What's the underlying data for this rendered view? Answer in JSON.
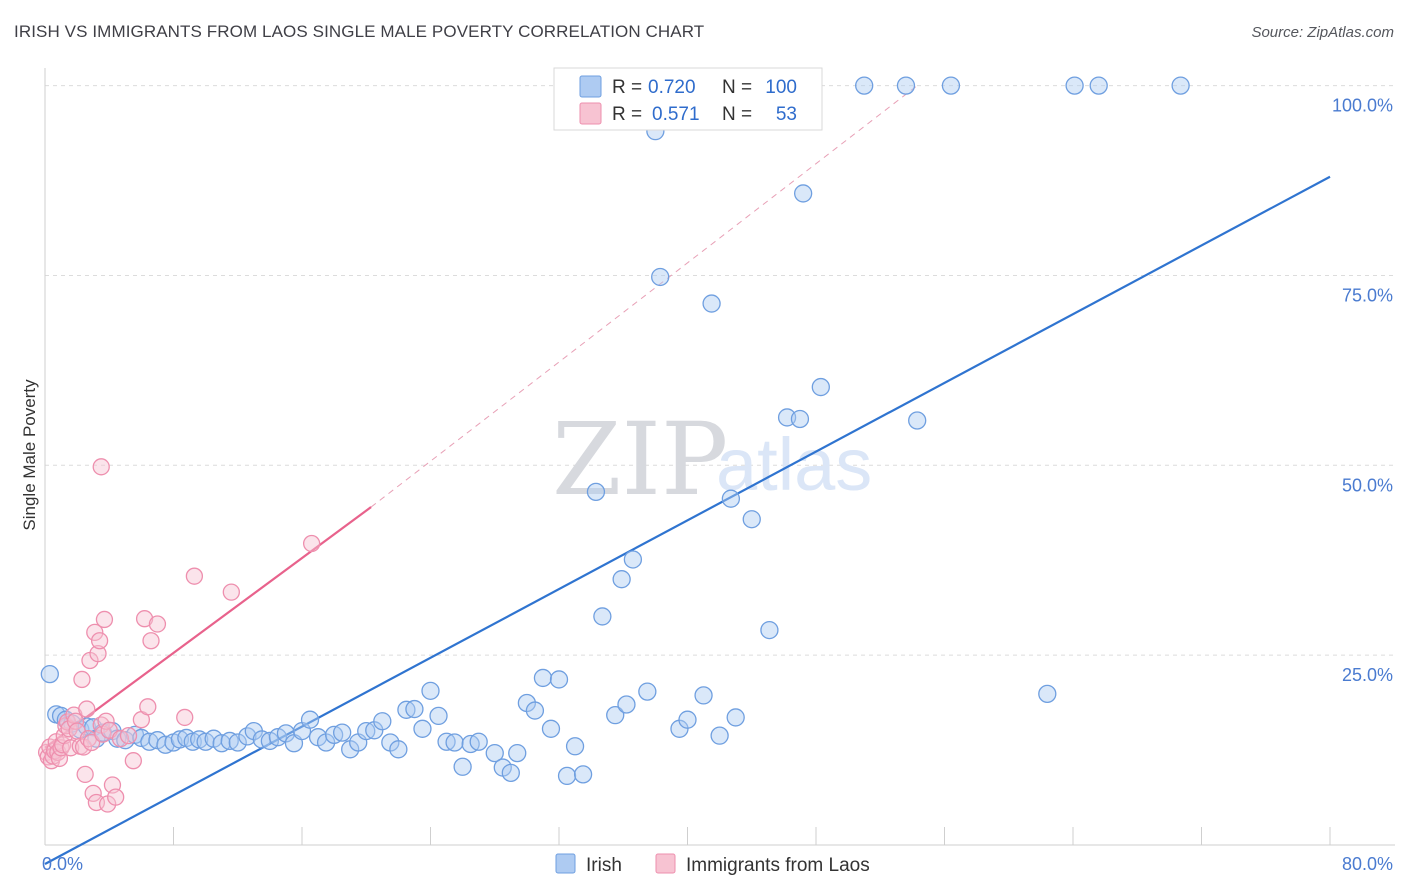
{
  "header": {
    "title": "IRISH VS IMMIGRANTS FROM LAOS SINGLE MALE POVERTY CORRELATION CHART",
    "source": "Source: ZipAtlas.com"
  },
  "watermark": {
    "zip": "ZIP",
    "atlas": "atlas"
  },
  "colors": {
    "irish_fill": "#aecbf2",
    "irish_stroke": "#6f9fe0",
    "irish_line": "#2f74d0",
    "laos_fill": "#f7c3d2",
    "laos_stroke": "#ee8fae",
    "laos_line": "#e8628c",
    "grid": "#dcdcdc",
    "tick_label": "#4a7bd0"
  },
  "legend": {
    "r_label": "R =",
    "n_label": "N =",
    "rows": [
      {
        "series": "Irish",
        "r": "0.720",
        "n": "100"
      },
      {
        "series": "Immigrants from Laos",
        "r": "0.571",
        "n": "53"
      }
    ]
  },
  "chart_data": {
    "type": "scatter",
    "title": "IRISH VS IMMIGRANTS FROM LAOS SINGLE MALE POVERTY CORRELATION CHART",
    "xlabel": "",
    "ylabel": "Single Male Poverty",
    "xlim": [
      0,
      80
    ],
    "ylim": [
      0,
      101
    ],
    "x_tick_labels": [
      "0.0%",
      "80.0%"
    ],
    "y_ticks": [
      25,
      50,
      75,
      100
    ],
    "y_tick_labels": [
      "25.0%",
      "50.0%",
      "75.0%",
      "100.0%"
    ],
    "grid": true,
    "legend_position": "top-center",
    "series": [
      {
        "name": "Irish",
        "trendline": {
          "x": [
            0,
            80
          ],
          "y": [
            -2.5,
            88
          ]
        },
        "points": [
          [
            0.3,
            22.5
          ],
          [
            0.7,
            17.2
          ],
          [
            1.0,
            17.0
          ],
          [
            1.3,
            16.5
          ],
          [
            1.7,
            16.0
          ],
          [
            2.2,
            15.2
          ],
          [
            2.6,
            15.6
          ],
          [
            3.0,
            15.5
          ],
          [
            3.2,
            14.0
          ],
          [
            3.6,
            14.8
          ],
          [
            4.2,
            15.0
          ],
          [
            4.5,
            14.0
          ],
          [
            5.0,
            13.8
          ],
          [
            5.6,
            14.5
          ],
          [
            6.0,
            14.1
          ],
          [
            6.5,
            13.6
          ],
          [
            7.0,
            13.8
          ],
          [
            7.5,
            13.2
          ],
          [
            8.0,
            13.5
          ],
          [
            8.4,
            13.9
          ],
          [
            8.8,
            14.1
          ],
          [
            9.2,
            13.6
          ],
          [
            9.6,
            13.9
          ],
          [
            10.0,
            13.6
          ],
          [
            10.5,
            14.0
          ],
          [
            11.0,
            13.4
          ],
          [
            11.5,
            13.7
          ],
          [
            12.0,
            13.5
          ],
          [
            12.6,
            14.3
          ],
          [
            13.0,
            15.0
          ],
          [
            13.5,
            13.9
          ],
          [
            14.0,
            13.7
          ],
          [
            14.5,
            14.2
          ],
          [
            15.0,
            14.7
          ],
          [
            15.5,
            13.4
          ],
          [
            16.0,
            15.0
          ],
          [
            16.5,
            16.5
          ],
          [
            17.0,
            14.2
          ],
          [
            17.5,
            13.5
          ],
          [
            18.0,
            14.5
          ],
          [
            18.5,
            14.8
          ],
          [
            19.0,
            12.6
          ],
          [
            19.5,
            13.5
          ],
          [
            20.0,
            15.0
          ],
          [
            20.5,
            15.1
          ],
          [
            21.0,
            16.3
          ],
          [
            21.5,
            13.5
          ],
          [
            22.0,
            12.6
          ],
          [
            22.5,
            17.8
          ],
          [
            23.0,
            17.9
          ],
          [
            23.5,
            15.3
          ],
          [
            24.0,
            20.3
          ],
          [
            24.5,
            17.0
          ],
          [
            25.0,
            13.6
          ],
          [
            25.5,
            13.5
          ],
          [
            26.0,
            10.3
          ],
          [
            26.5,
            13.3
          ],
          [
            27.0,
            13.6
          ],
          [
            28.0,
            12.1
          ],
          [
            28.5,
            10.2
          ],
          [
            29.0,
            9.5
          ],
          [
            29.4,
            12.1
          ],
          [
            30.0,
            18.7
          ],
          [
            30.5,
            17.7
          ],
          [
            31.0,
            22.0
          ],
          [
            31.5,
            15.3
          ],
          [
            32.0,
            21.8
          ],
          [
            32.5,
            9.1
          ],
          [
            33.0,
            13.0
          ],
          [
            33.5,
            9.3
          ],
          [
            34.3,
            46.5
          ],
          [
            34.7,
            30.1
          ],
          [
            35.5,
            17.1
          ],
          [
            35.9,
            35.0
          ],
          [
            36.2,
            18.5
          ],
          [
            36.6,
            37.6
          ],
          [
            37.5,
            20.2
          ],
          [
            38.0,
            94.0
          ],
          [
            38.3,
            74.8
          ],
          [
            39.5,
            15.3
          ],
          [
            40.0,
            16.5
          ],
          [
            41.0,
            19.7
          ],
          [
            41.5,
            71.3
          ],
          [
            42.0,
            14.4
          ],
          [
            42.7,
            45.6
          ],
          [
            43.0,
            16.8
          ],
          [
            44.0,
            42.9
          ],
          [
            45.1,
            28.3
          ],
          [
            46.2,
            56.3
          ],
          [
            47.0,
            56.1
          ],
          [
            47.2,
            85.8
          ],
          [
            48.3,
            60.3
          ],
          [
            51.0,
            100.0
          ],
          [
            53.6,
            100.0
          ],
          [
            54.3,
            55.9
          ],
          [
            56.4,
            100.0
          ],
          [
            62.4,
            19.9
          ],
          [
            64.1,
            100.0
          ],
          [
            65.6,
            100.0
          ],
          [
            70.7,
            100.0
          ]
        ]
      },
      {
        "name": "Immigrants from Laos",
        "trendline": {
          "x": [
            0,
            20.3
          ],
          "y": [
            12.8,
            44.5
          ]
        },
        "extension": {
          "x": [
            20.3,
            54.3
          ],
          "y": [
            44.5,
            100.0
          ]
        },
        "points": [
          [
            0.1,
            12.2
          ],
          [
            0.2,
            11.6
          ],
          [
            0.3,
            12.9
          ],
          [
            0.4,
            11.1
          ],
          [
            0.5,
            11.7
          ],
          [
            0.6,
            12.4
          ],
          [
            0.7,
            13.6
          ],
          [
            0.8,
            12.2
          ],
          [
            0.9,
            11.4
          ],
          [
            1.0,
            12.8
          ],
          [
            1.1,
            13.2
          ],
          [
            1.2,
            14.4
          ],
          [
            1.3,
            15.7
          ],
          [
            1.4,
            16.2
          ],
          [
            1.5,
            15.3
          ],
          [
            1.6,
            12.8
          ],
          [
            1.8,
            17.1
          ],
          [
            1.9,
            16.3
          ],
          [
            2.0,
            15.0
          ],
          [
            2.2,
            13.0
          ],
          [
            2.3,
            21.8
          ],
          [
            2.4,
            12.9
          ],
          [
            2.5,
            9.3
          ],
          [
            2.6,
            17.9
          ],
          [
            2.7,
            14.0
          ],
          [
            2.8,
            24.3
          ],
          [
            2.9,
            13.5
          ],
          [
            3.0,
            6.8
          ],
          [
            3.1,
            28.0
          ],
          [
            3.2,
            5.6
          ],
          [
            3.3,
            25.2
          ],
          [
            3.4,
            26.9
          ],
          [
            3.5,
            15.8
          ],
          [
            3.6,
            14.6
          ],
          [
            3.7,
            29.7
          ],
          [
            3.8,
            16.3
          ],
          [
            3.9,
            5.4
          ],
          [
            4.0,
            15.1
          ],
          [
            4.2,
            7.9
          ],
          [
            4.4,
            6.3
          ],
          [
            4.7,
            14.0
          ],
          [
            5.2,
            14.4
          ],
          [
            5.5,
            11.1
          ],
          [
            6.0,
            16.5
          ],
          [
            6.2,
            29.8
          ],
          [
            6.4,
            18.2
          ],
          [
            6.6,
            26.9
          ],
          [
            7.0,
            29.1
          ],
          [
            8.7,
            16.8
          ],
          [
            9.3,
            35.4
          ],
          [
            11.6,
            33.3
          ],
          [
            16.6,
            39.7
          ],
          [
            3.5,
            49.8
          ]
        ]
      }
    ]
  },
  "bottom_legend": [
    {
      "series": "Irish"
    },
    {
      "series": "Immigrants from Laos"
    }
  ]
}
